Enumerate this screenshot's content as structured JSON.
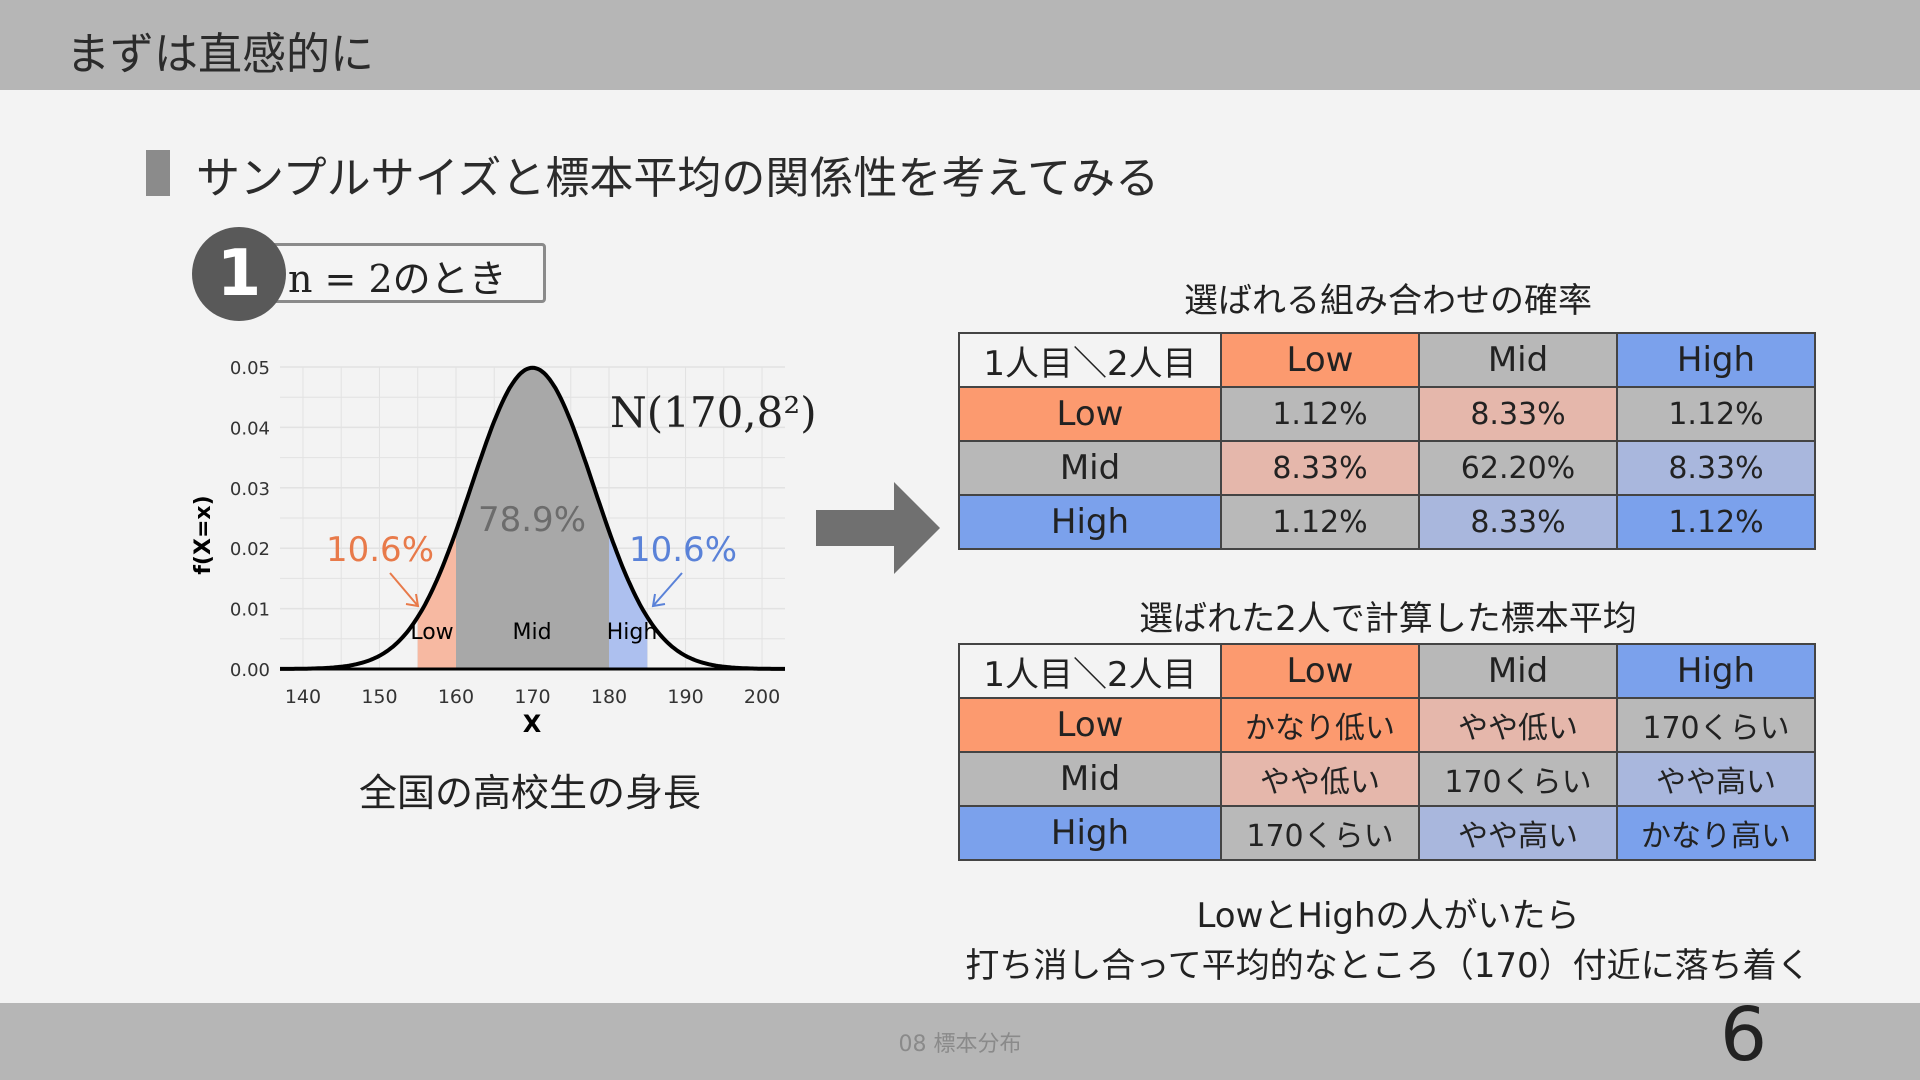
{
  "header": {
    "title": "まずは直感的に"
  },
  "subtitle": "サンプルサイズと標本平均の関係性を考えてみる",
  "badge": {
    "number": "1",
    "text": "n = 2のとき"
  },
  "chart": {
    "formula": "N(170,8²)",
    "y_ticks": [
      "0.05",
      "0.04",
      "0.03",
      "0.02",
      "0.01",
      "0.00"
    ],
    "x_ticks": [
      "140",
      "150",
      "160",
      "170",
      "180",
      "190",
      "200"
    ],
    "xlabel": "X",
    "ylabel": "f(X=x)",
    "left_pct": "10.6%",
    "mid_pct": "78.9%",
    "right_pct": "10.6%",
    "region_low": "Low",
    "region_mid": "Mid",
    "region_high": "High"
  },
  "chart_data": {
    "type": "area",
    "distribution": "normal",
    "mean": 170,
    "sd": 8,
    "xlim": [
      137,
      203
    ],
    "ylim": [
      0,
      0.05
    ],
    "xlabel": "X",
    "ylabel": "f(X=x)",
    "regions": [
      {
        "name": "Low",
        "from": 155,
        "to": 160,
        "prob": "10.6%",
        "color": "#f7b9a2"
      },
      {
        "name": "Mid",
        "from": 160,
        "to": 180,
        "prob": "78.9%",
        "color": "#a8a8a8"
      },
      {
        "name": "High",
        "from": 180,
        "to": 185,
        "prob": "10.6%",
        "color": "#adc0ef"
      }
    ],
    "grid": true
  },
  "caption": "全国の高校生の身長",
  "table1": {
    "title": "選ばれる組み合わせの確率",
    "corner": "1人目＼2人目",
    "cols": [
      "Low",
      "Mid",
      "High"
    ],
    "rows": [
      {
        "label": "Low",
        "cells": [
          "1.12%",
          "8.33%",
          "1.12%"
        ]
      },
      {
        "label": "Mid",
        "cells": [
          "8.33%",
          "62.20%",
          "8.33%"
        ]
      },
      {
        "label": "High",
        "cells": [
          "1.12%",
          "8.33%",
          "1.12%"
        ]
      }
    ]
  },
  "table2": {
    "title": "選ばれた2人で計算した標本平均",
    "corner": "1人目＼2人目",
    "cols": [
      "Low",
      "Mid",
      "High"
    ],
    "rows": [
      {
        "label": "Low",
        "cells": [
          "かなり低い",
          "やや低い",
          "170くらい"
        ]
      },
      {
        "label": "Mid",
        "cells": [
          "やや低い",
          "170くらい",
          "やや高い"
        ]
      },
      {
        "label": "High",
        "cells": [
          "170くらい",
          "やや高い",
          "かなり高い"
        ]
      }
    ]
  },
  "note": {
    "line1": "LowとHighの人がいたら",
    "line2": "打ち消し合って平均的なところ（170）付近に落ち着く"
  },
  "footer": {
    "text": "08 標本分布",
    "page": "6"
  },
  "colors": {
    "low": "#fc9a6f",
    "mid": "#b8b8b8",
    "high": "#7ba1ec",
    "low_label": "#e87a4a",
    "high_label": "#5a82d8"
  }
}
